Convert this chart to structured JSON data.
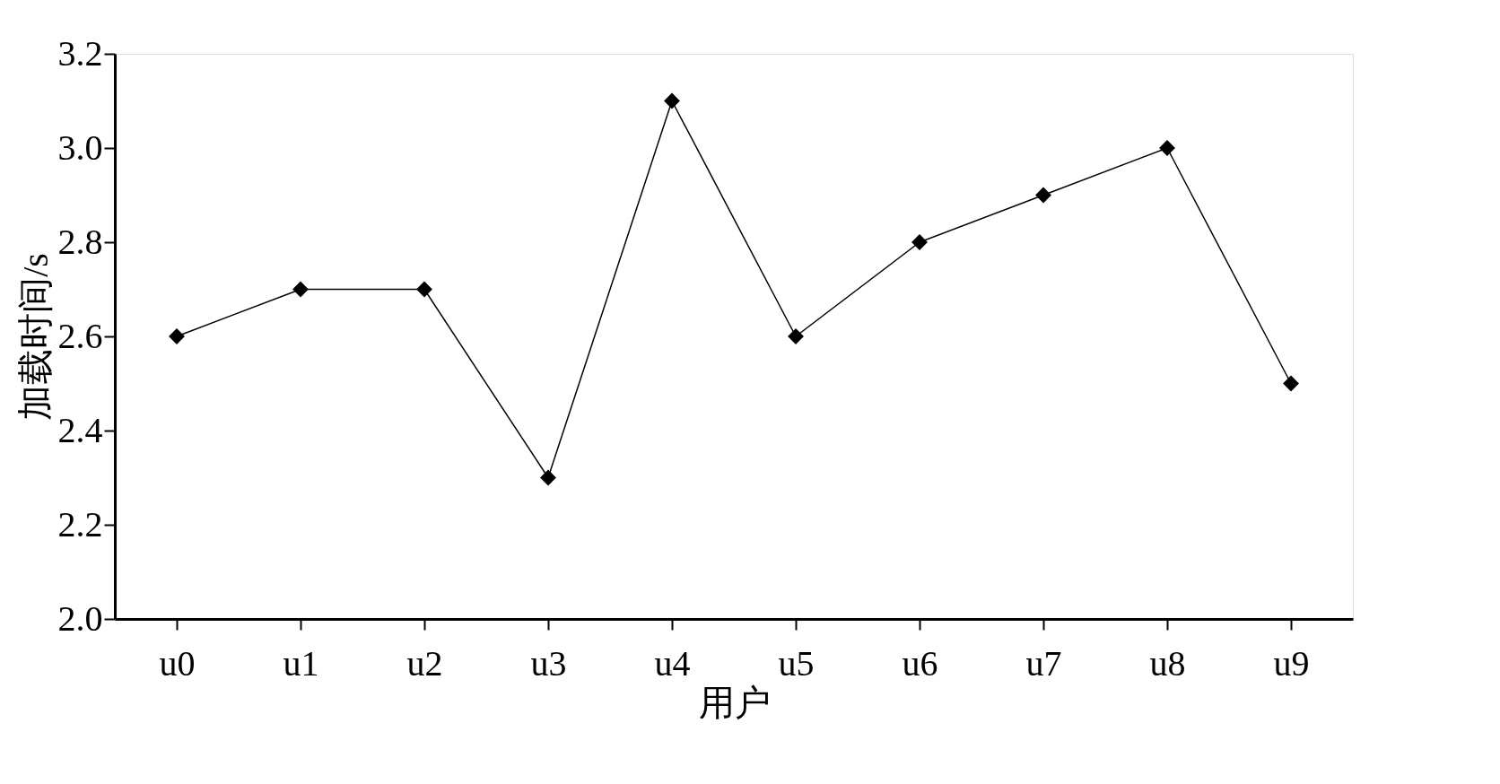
{
  "chart_data": {
    "type": "line",
    "xlabel": "用户",
    "ylabel": "加载时间/s",
    "categories": [
      "u0",
      "u1",
      "u2",
      "u3",
      "u4",
      "u5",
      "u6",
      "u7",
      "u8",
      "u9"
    ],
    "series": [
      {
        "color": "#000000",
        "values": [
          2.6,
          2.7,
          2.7,
          2.3,
          3.1,
          2.6,
          2.8,
          2.9,
          3.0,
          2.5
        ]
      }
    ],
    "ylim": [
      2.0,
      3.2
    ],
    "yticks": [
      {
        "value": 2.0,
        "label": "2.0"
      },
      {
        "value": 2.2,
        "label": "2.2"
      },
      {
        "value": 2.4,
        "label": "2.4"
      },
      {
        "value": 2.6,
        "label": "2.6"
      },
      {
        "value": 2.8,
        "label": "2.8"
      },
      {
        "value": 3.0,
        "label": "3.0"
      },
      {
        "value": 3.2,
        "label": "3.2"
      }
    ],
    "grid": false,
    "legend": false,
    "marker": "diamond",
    "line_style": "solid"
  }
}
